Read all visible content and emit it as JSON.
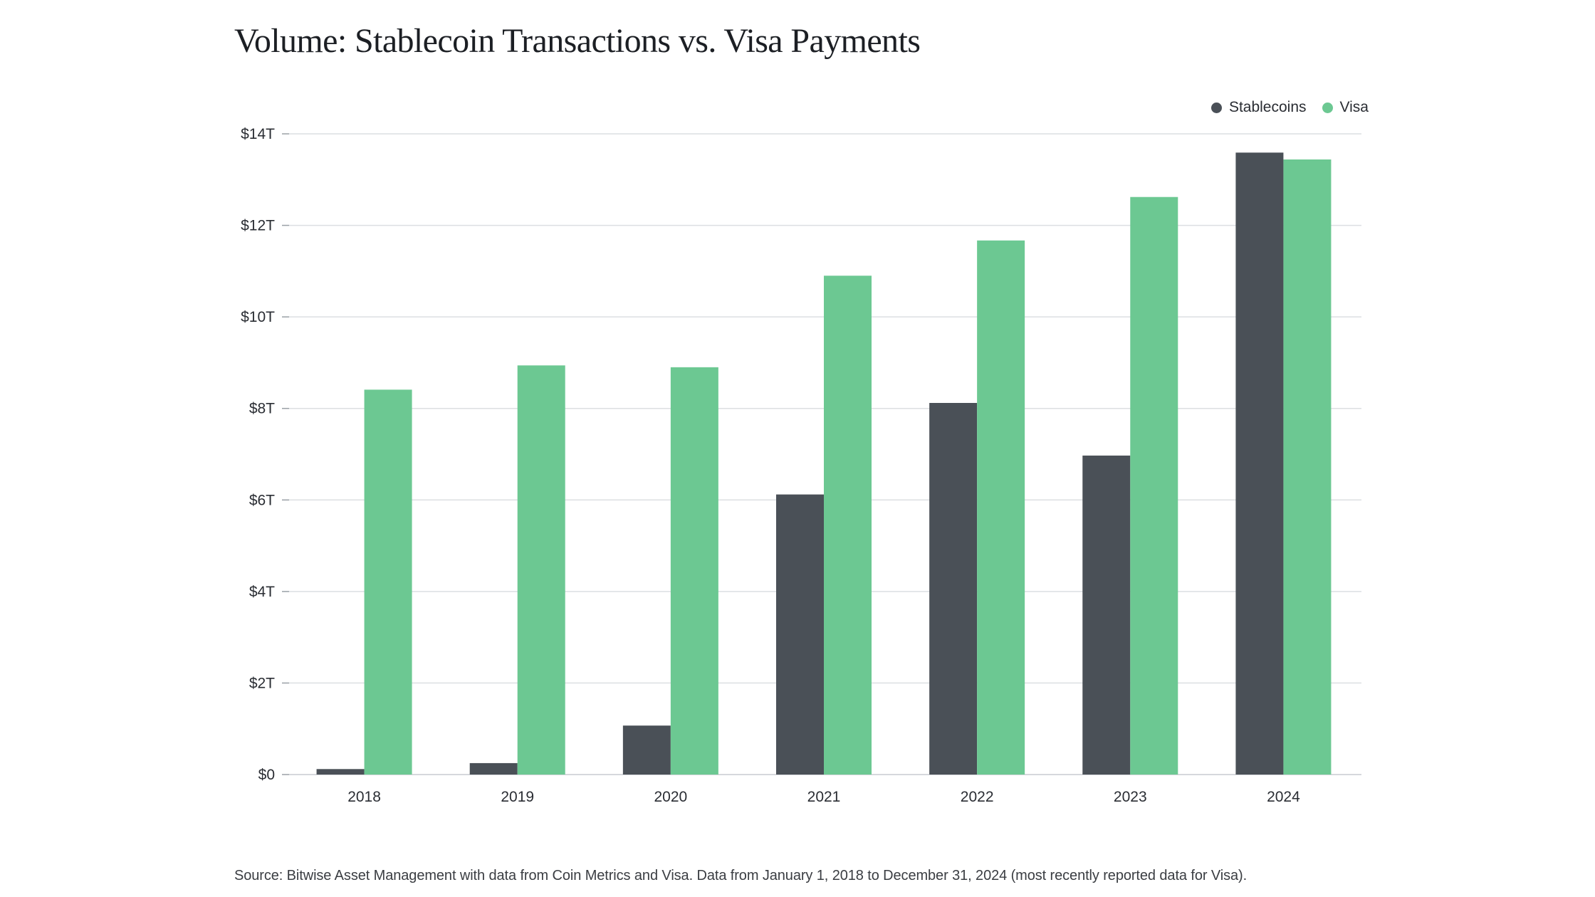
{
  "title": "Volume: Stablecoin Transactions vs. Visa Payments",
  "source": "Source: Bitwise Asset Management with data from Coin Metrics and Visa. Data from January 1, 2018 to December 31, 2024 (most recently reported data for Visa).",
  "legend": {
    "stablecoins": "Stablecoins",
    "visa": "Visa"
  },
  "chart_data": {
    "type": "bar",
    "title": "Volume: Stablecoin Transactions vs. Visa Payments",
    "xlabel": "",
    "ylabel": "",
    "categories": [
      "2018",
      "2019",
      "2020",
      "2021",
      "2022",
      "2023",
      "2024"
    ],
    "series": [
      {
        "name": "Stablecoins",
        "color": "#4a5057",
        "values": [
          0.12,
          0.25,
          1.07,
          6.12,
          8.12,
          6.97,
          13.59
        ]
      },
      {
        "name": "Visa",
        "color": "#6cc892",
        "values": [
          8.41,
          8.94,
          8.9,
          10.9,
          11.67,
          12.62,
          13.44
        ]
      }
    ],
    "ylim": [
      0,
      14
    ],
    "yticks": [
      0,
      2,
      4,
      6,
      8,
      10,
      12,
      14
    ],
    "ytick_labels": [
      "$0",
      "$2T",
      "$4T",
      "$6T",
      "$8T",
      "$10T",
      "$12T",
      "$14T"
    ],
    "grid": true,
    "legend_position": "top-right"
  }
}
